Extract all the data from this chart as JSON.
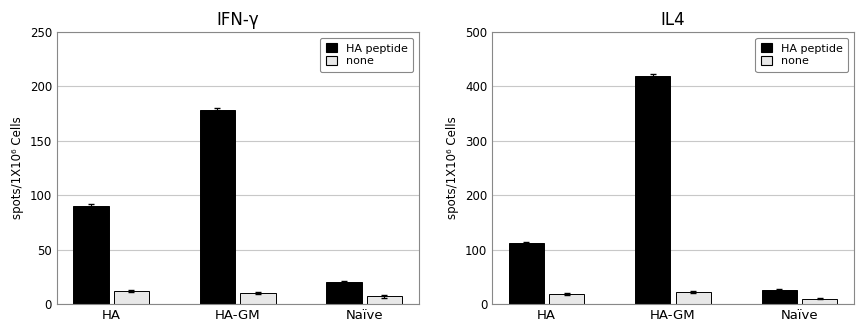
{
  "left": {
    "title": "IFN-γ",
    "categories": [
      "HA",
      "HA-GM",
      "Naïve"
    ],
    "ha_peptide": [
      90,
      178,
      20
    ],
    "none": [
      12,
      10,
      7
    ],
    "ha_err": [
      2,
      2,
      1.5
    ],
    "none_err": [
      1,
      1,
      1
    ],
    "ylim": [
      0,
      250
    ],
    "yticks": [
      0,
      50,
      100,
      150,
      200,
      250
    ],
    "ylabel": "spots/1X10⁶ Cells"
  },
  "right": {
    "title": "IL4",
    "categories": [
      "HA",
      "HA-GM",
      "Naïve"
    ],
    "ha_peptide": [
      112,
      420,
      25
    ],
    "none": [
      18,
      22,
      10
    ],
    "ha_err": [
      2,
      2,
      2
    ],
    "none_err": [
      1.5,
      1.5,
      1
    ],
    "ylim": [
      0,
      500
    ],
    "yticks": [
      0,
      100,
      200,
      300,
      400,
      500
    ],
    "ylabel": "spots/1X10⁶ Cells"
  },
  "bar_width": 0.28,
  "color_ha_peptide": "#000000",
  "color_none": "#e8e8e8",
  "legend_labels": [
    "HA peptide",
    "none"
  ],
  "background_color": "#ffffff",
  "grid_color": "#c8c8c8",
  "spine_color": "#888888"
}
